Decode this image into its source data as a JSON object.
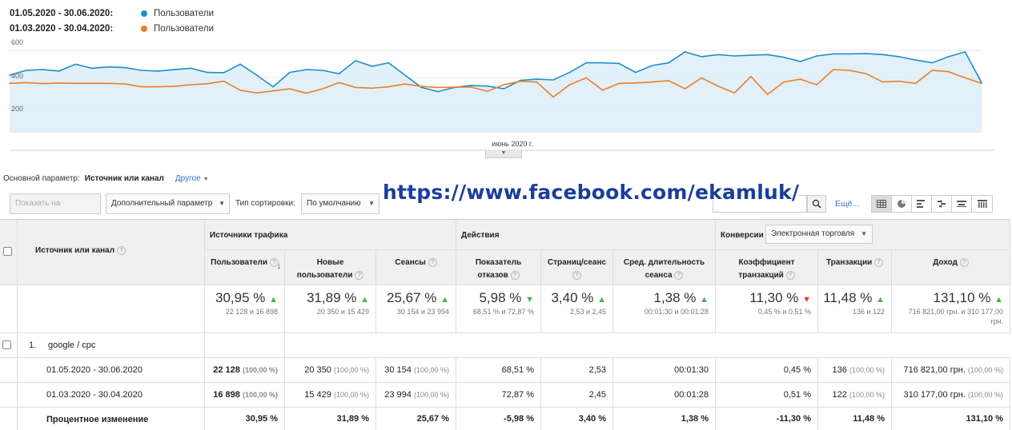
{
  "legend": [
    {
      "date_range": "01.05.2020 - 30.06.2020:",
      "metric": "Пользователи",
      "color": "#1e8ecb"
    },
    {
      "date_range": "01.03.2020 - 30.04.2020:",
      "metric": "Пользователи",
      "color": "#ef7d2b"
    }
  ],
  "chart": {
    "y_ticks": [
      "600",
      "400",
      "200"
    ],
    "x_label": "июнь 2020 г."
  },
  "chart_data": {
    "type": "line",
    "ylim": [
      0,
      700
    ],
    "series": [
      {
        "name": "01.05.2020 - 30.06.2020",
        "color": "#1e8ecb",
        "values": [
          420,
          455,
          460,
          450,
          500,
          470,
          480,
          475,
          455,
          450,
          460,
          470,
          440,
          438,
          500,
          420,
          335,
          440,
          460,
          455,
          430,
          525,
          485,
          510,
          420,
          330,
          300,
          330,
          345,
          340,
          320,
          382,
          390,
          385,
          440,
          510,
          510,
          505,
          440,
          490,
          510,
          590,
          555,
          570,
          560,
          565,
          570,
          550,
          520,
          560,
          575,
          575,
          578,
          570,
          555,
          530,
          510,
          555,
          590,
          365
        ]
      },
      {
        "name": "01.03.2020 - 30.04.2020",
        "color": "#ef7d2b",
        "values": [
          360,
          365,
          358,
          362,
          360,
          360,
          360,
          355,
          335,
          335,
          338,
          350,
          357,
          376,
          310,
          290,
          305,
          320,
          288,
          320,
          365,
          330,
          325,
          335,
          355,
          338,
          330,
          332,
          333,
          302,
          350,
          375,
          370,
          260,
          350,
          400,
          310,
          360,
          363,
          370,
          380,
          320,
          400,
          340,
          290,
          410,
          280,
          370,
          390,
          350,
          460,
          455,
          430,
          370,
          375,
          360,
          455,
          445,
          400,
          360
        ]
      }
    ]
  },
  "dimension": {
    "label": "Основной параметр:",
    "value": "Источник или канал",
    "other": "Другое"
  },
  "toolbar": {
    "plot_button": "Показать на диаграмме",
    "secondary_param": "Дополнительный параметр",
    "sort_label": "Тип сортировки:",
    "sort_value": "По умолчанию",
    "more_link": "Ещё..."
  },
  "watermark": "https://www.facebook.com/ekamluk/",
  "table": {
    "dimension_header": "Источник или канал",
    "groups": {
      "acquisition": "Источники трафика",
      "behavior": "Действия",
      "conversions": "Конверсии",
      "conversion_select": "Электронная торговля"
    },
    "columns": [
      {
        "label": "Пользователи"
      },
      {
        "label": "Новые пользователи"
      },
      {
        "label": "Сеансы"
      },
      {
        "label": "Показатель отказов"
      },
      {
        "label": "Страниц/сеанс"
      },
      {
        "label": "Сред. длительность сеанса"
      },
      {
        "label": "Коэффициент транзакций"
      },
      {
        "label": "Транзакции"
      },
      {
        "label": "Доход"
      }
    ],
    "summary": [
      {
        "change": "30,95 %",
        "trend": "up",
        "detail": "22 128 и 16 898"
      },
      {
        "change": "31,89 %",
        "trend": "up",
        "detail": "20 350 и 15 429"
      },
      {
        "change": "25,67 %",
        "trend": "up",
        "detail": "30 154 и 23 994"
      },
      {
        "change": "5,98 %",
        "trend": "down-good",
        "detail": "68,51 % и 72,87 %"
      },
      {
        "change": "3,40 %",
        "trend": "up",
        "detail": "2,53 и 2,45"
      },
      {
        "change": "1,38 %",
        "trend": "up",
        "detail": "00:01:30 и 00:01:28"
      },
      {
        "change": "11,30 %",
        "trend": "down",
        "detail": "0,45 % и 0,51 %"
      },
      {
        "change": "11,48 %",
        "trend": "up",
        "detail": "136 и 122"
      },
      {
        "change": "131,10 %",
        "trend": "up",
        "detail": "716 821,00 грн. и 310 177,00 грн."
      }
    ],
    "row": {
      "index": "1.",
      "name": "google / cpc"
    },
    "periods": [
      {
        "label": "01.05.2020 - 30.06.2020",
        "cells": [
          {
            "v": "22 128",
            "p": "(100,00 %)"
          },
          {
            "v": "20 350",
            "p": "(100,00 %)"
          },
          {
            "v": "30 154",
            "p": "(100,00 %)"
          },
          {
            "v": "68,51 %",
            "p": ""
          },
          {
            "v": "2,53",
            "p": ""
          },
          {
            "v": "00:01:30",
            "p": ""
          },
          {
            "v": "0,45 %",
            "p": ""
          },
          {
            "v": "136",
            "p": "(100,00 %)"
          },
          {
            "v": "716 821,00 грн.",
            "p": "(100,00 %)"
          }
        ]
      },
      {
        "label": "01.03.2020 - 30.04.2020",
        "cells": [
          {
            "v": "16 898",
            "p": "(100,00 %)"
          },
          {
            "v": "15 429",
            "p": "(100,00 %)"
          },
          {
            "v": "23 994",
            "p": "(100,00 %)"
          },
          {
            "v": "72,87 %",
            "p": ""
          },
          {
            "v": "2,45",
            "p": ""
          },
          {
            "v": "00:01:28",
            "p": ""
          },
          {
            "v": "0,51 %",
            "p": ""
          },
          {
            "v": "122",
            "p": "(100,00 %)"
          },
          {
            "v": "310 177,00 грн.",
            "p": "(100,00 %)"
          }
        ]
      }
    ],
    "change_row": {
      "label": "Процентное изменение",
      "values": [
        "30,95 %",
        "31,89 %",
        "25,67 %",
        "-5,98 %",
        "3,40 %",
        "1,38 %",
        "-11,30 %",
        "11,48 %",
        "131,10 %"
      ]
    }
  }
}
